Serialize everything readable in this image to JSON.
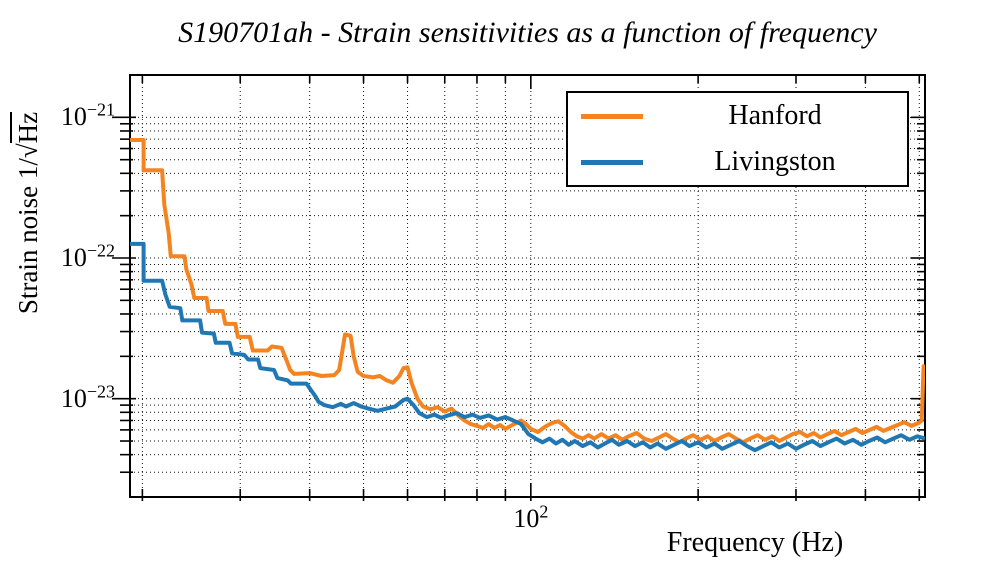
{
  "title": "S190701ah - Strain sensitivities as a function of frequency",
  "axes": {
    "xlabel": "Frequency (Hz)",
    "ylabel_prefix": "Strain noise 1/",
    "ylabel_radical": "√",
    "ylabel_sqrt_arg": "Hz",
    "x_tick_labels": [
      {
        "base": "10",
        "exp": "2",
        "value": 100
      }
    ],
    "y_tick_labels": [
      {
        "base": "10",
        "exp": "−21",
        "value": 1e-21
      },
      {
        "base": "10",
        "exp": "−22",
        "value": 1e-22
      },
      {
        "base": "10",
        "exp": "−23",
        "value": 1e-23
      }
    ]
  },
  "legend": {
    "items": [
      {
        "label": "Hanford",
        "color": "#f48420"
      },
      {
        "label": "Livingston",
        "color": "#1f77b4"
      }
    ]
  },
  "chart_data": {
    "type": "line",
    "title": "S190701ah - Strain sensitivities as a function of frequency",
    "xlabel": "Frequency (Hz)",
    "ylabel": "Strain noise 1/√Hz",
    "xscale": "log",
    "yscale": "log",
    "xlim": [
      19,
      512
    ],
    "ylim": [
      2e-24,
      2e-21
    ],
    "grid": true,
    "grid_style": "dotted",
    "legend_position": "upper right",
    "series": [
      {
        "name": "Hanford",
        "color": "#f48420",
        "points": [
          [
            19,
            6.9e-22
          ],
          [
            20.1,
            6.9e-22
          ],
          [
            20.1,
            4.2e-22
          ],
          [
            21.7,
            4.2e-22
          ],
          [
            21.9,
            2.4e-22
          ],
          [
            22.3,
            1.5e-22
          ],
          [
            22.5,
            1.03e-22
          ],
          [
            23.8,
            1.03e-22
          ],
          [
            24.0,
            8.3e-23
          ],
          [
            24.5,
            6.5e-23
          ],
          [
            24.8,
            5.2e-23
          ],
          [
            26.1,
            5.2e-23
          ],
          [
            26.3,
            4.2e-23
          ],
          [
            27.9,
            4.2e-23
          ],
          [
            28.2,
            3.4e-23
          ],
          [
            29.4,
            3.4e-23
          ],
          [
            29.7,
            2.75e-23
          ],
          [
            31.2,
            2.75e-23
          ],
          [
            31.6,
            2.2e-23
          ],
          [
            33.6,
            2.2e-23
          ],
          [
            34.2,
            2.35e-23
          ],
          [
            35.6,
            2.3e-23
          ],
          [
            36.3,
            1.9e-23
          ],
          [
            36.9,
            1.6e-23
          ],
          [
            37.5,
            1.5e-23
          ],
          [
            40,
            1.52e-23
          ],
          [
            42,
            1.45e-23
          ],
          [
            44.3,
            1.47e-23
          ],
          [
            45.2,
            1.6e-23
          ],
          [
            45.8,
            2.2e-23
          ],
          [
            46.3,
            2.86e-23
          ],
          [
            47.4,
            2.8e-23
          ],
          [
            48,
            2e-23
          ],
          [
            48.8,
            1.55e-23
          ],
          [
            50,
            1.45e-23
          ],
          [
            52,
            1.42e-23
          ],
          [
            53.5,
            1.45e-23
          ],
          [
            55,
            1.35e-23
          ],
          [
            56.5,
            1.3e-23
          ],
          [
            58,
            1.45e-23
          ],
          [
            59,
            1.65e-23
          ],
          [
            60,
            1.67e-23
          ],
          [
            61,
            1.3e-23
          ],
          [
            62.5,
            1e-23
          ],
          [
            64,
            8.8e-24
          ],
          [
            66,
            8.4e-24
          ],
          [
            68,
            8.7e-24
          ],
          [
            70,
            8.1e-24
          ],
          [
            72,
            8.5e-24
          ],
          [
            74,
            7.6e-24
          ],
          [
            76,
            7e-24
          ],
          [
            78,
            6.6e-24
          ],
          [
            80,
            6.4e-24
          ],
          [
            82,
            6.2e-24
          ],
          [
            84,
            6.6e-24
          ],
          [
            86,
            6.2e-24
          ],
          [
            88,
            6.5e-24
          ],
          [
            90,
            6.1e-24
          ],
          [
            92,
            6.4e-24
          ],
          [
            94,
            6.7e-24
          ],
          [
            96,
            7e-24
          ],
          [
            98,
            6.6e-24
          ],
          [
            100,
            6.1e-24
          ],
          [
            103,
            5.8e-24
          ],
          [
            106,
            6.3e-24
          ],
          [
            109,
            6.7e-24
          ],
          [
            112,
            6.9e-24
          ],
          [
            115,
            6.4e-24
          ],
          [
            118,
            5.8e-24
          ],
          [
            121,
            5.4e-24
          ],
          [
            124,
            5.2e-24
          ],
          [
            127,
            5.5e-24
          ],
          [
            130,
            5.2e-24
          ],
          [
            134,
            5.6e-24
          ],
          [
            138,
            5.2e-24
          ],
          [
            142,
            5.5e-24
          ],
          [
            146,
            5.1e-24
          ],
          [
            150,
            5.4e-24
          ],
          [
            155,
            5.7e-24
          ],
          [
            160,
            5.2e-24
          ],
          [
            165,
            5e-24
          ],
          [
            170,
            5.3e-24
          ],
          [
            175,
            5.6e-24
          ],
          [
            180,
            5.2e-24
          ],
          [
            185,
            4.9e-24
          ],
          [
            190,
            5.2e-24
          ],
          [
            196,
            5.5e-24
          ],
          [
            202,
            5.1e-24
          ],
          [
            208,
            5.4e-24
          ],
          [
            214,
            5e-24
          ],
          [
            220,
            5.3e-24
          ],
          [
            227,
            5.6e-24
          ],
          [
            234,
            5.2e-24
          ],
          [
            241,
            4.9e-24
          ],
          [
            248,
            5.2e-24
          ],
          [
            256,
            5.5e-24
          ],
          [
            264,
            5.1e-24
          ],
          [
            272,
            5.4e-24
          ],
          [
            280,
            5e-24
          ],
          [
            288,
            5.3e-24
          ],
          [
            296,
            5.6e-24
          ],
          [
            305,
            5.8e-24
          ],
          [
            314,
            5.4e-24
          ],
          [
            323,
            5.7e-24
          ],
          [
            332,
            5.3e-24
          ],
          [
            342,
            5.6e-24
          ],
          [
            352,
            5.9e-24
          ],
          [
            362,
            5.5e-24
          ],
          [
            373,
            5.8e-24
          ],
          [
            384,
            6.1e-24
          ],
          [
            395,
            5.7e-24
          ],
          [
            407,
            6e-24
          ],
          [
            419,
            6.3e-24
          ],
          [
            431,
            5.9e-24
          ],
          [
            444,
            6.2e-24
          ],
          [
            457,
            6.5e-24
          ],
          [
            470,
            6.8e-24
          ],
          [
            484,
            6.4e-24
          ],
          [
            498,
            6.7e-24
          ],
          [
            505,
            7e-24
          ],
          [
            509,
            1.7e-23
          ],
          [
            512,
            1.6e-23
          ]
        ]
      },
      {
        "name": "Livingston",
        "color": "#1f77b4",
        "points": [
          [
            19,
            1.26e-22
          ],
          [
            20.1,
            1.26e-22
          ],
          [
            20.1,
            6.9e-23
          ],
          [
            21.7,
            6.9e-23
          ],
          [
            22.0,
            5.5e-23
          ],
          [
            22.4,
            4.5e-23
          ],
          [
            23.4,
            4.4e-23
          ],
          [
            23.6,
            3.6e-23
          ],
          [
            25.4,
            3.6e-23
          ],
          [
            25.6,
            2.95e-23
          ],
          [
            26.9,
            2.9e-23
          ],
          [
            27.1,
            2.5e-23
          ],
          [
            28.7,
            2.5e-23
          ],
          [
            29.0,
            2.1e-23
          ],
          [
            30.5,
            2.05e-23
          ],
          [
            31.0,
            1.9e-23
          ],
          [
            32.3,
            1.9e-23
          ],
          [
            32.6,
            1.65e-23
          ],
          [
            34.5,
            1.6e-23
          ],
          [
            35.0,
            1.4e-23
          ],
          [
            36.5,
            1.35e-23
          ],
          [
            37.0,
            1.28e-23
          ],
          [
            39.5,
            1.28e-23
          ],
          [
            40.2,
            1.15e-23
          ],
          [
            40.9,
            1.05e-23
          ],
          [
            41.5,
            9.5e-24
          ],
          [
            42.5,
            9e-24
          ],
          [
            44,
            8.7e-24
          ],
          [
            45.5,
            9.2e-24
          ],
          [
            46.5,
            8.8e-24
          ],
          [
            48,
            9.3e-24
          ],
          [
            49.5,
            8.8e-24
          ],
          [
            51,
            8.5e-24
          ],
          [
            53,
            8.2e-24
          ],
          [
            55,
            8.5e-24
          ],
          [
            57,
            8.8e-24
          ],
          [
            59,
            9.8e-24
          ],
          [
            60,
            1e-23
          ],
          [
            61.5,
            9e-24
          ],
          [
            63,
            7.9e-24
          ],
          [
            65,
            7.4e-24
          ],
          [
            67,
            7.7e-24
          ],
          [
            69,
            7.3e-24
          ],
          [
            71,
            7.6e-24
          ],
          [
            73.5,
            7.9e-24
          ],
          [
            76,
            7.4e-24
          ],
          [
            78.5,
            7.7e-24
          ],
          [
            81,
            7.3e-24
          ],
          [
            84,
            7.6e-24
          ],
          [
            87,
            7.1e-24
          ],
          [
            90,
            7.4e-24
          ],
          [
            93,
            7e-24
          ],
          [
            96,
            6.6e-24
          ],
          [
            99,
            5.6e-24
          ],
          [
            102,
            5.2e-24
          ],
          [
            105,
            4.9e-24
          ],
          [
            108,
            5.2e-24
          ],
          [
            111,
            4.8e-24
          ],
          [
            114,
            5.1e-24
          ],
          [
            117,
            4.7e-24
          ],
          [
            120,
            5e-24
          ],
          [
            124,
            4.6e-24
          ],
          [
            128,
            4.9e-24
          ],
          [
            132,
            4.5e-24
          ],
          [
            136,
            4.8e-24
          ],
          [
            140,
            5.1e-24
          ],
          [
            144,
            4.7e-24
          ],
          [
            149,
            5e-24
          ],
          [
            154,
            4.6e-24
          ],
          [
            159,
            4.9e-24
          ],
          [
            164,
            4.5e-24
          ],
          [
            169,
            4.8e-24
          ],
          [
            175,
            4.4e-24
          ],
          [
            181,
            4.7e-24
          ],
          [
            187,
            5e-24
          ],
          [
            193,
            4.6e-24
          ],
          [
            200,
            4.9e-24
          ],
          [
            207,
            4.5e-24
          ],
          [
            214,
            4.8e-24
          ],
          [
            221,
            4.4e-24
          ],
          [
            229,
            4.7e-24
          ],
          [
            237,
            5e-24
          ],
          [
            245,
            4.6e-24
          ],
          [
            253,
            4.3e-24
          ],
          [
            262,
            4.6e-24
          ],
          [
            271,
            4.9e-24
          ],
          [
            280,
            4.5e-24
          ],
          [
            290,
            4.8e-24
          ],
          [
            300,
            4.4e-24
          ],
          [
            310,
            4.7e-24
          ],
          [
            321,
            5e-24
          ],
          [
            332,
            4.6e-24
          ],
          [
            343,
            4.9e-24
          ],
          [
            355,
            5.2e-24
          ],
          [
            367,
            4.8e-24
          ],
          [
            380,
            5.1e-24
          ],
          [
            393,
            4.7e-24
          ],
          [
            406,
            5e-24
          ],
          [
            420,
            5.3e-24
          ],
          [
            434,
            4.9e-24
          ],
          [
            449,
            5.2e-24
          ],
          [
            464,
            5.5e-24
          ],
          [
            480,
            5.1e-24
          ],
          [
            496,
            5.4e-24
          ],
          [
            512,
            5.2e-24
          ]
        ]
      }
    ]
  }
}
